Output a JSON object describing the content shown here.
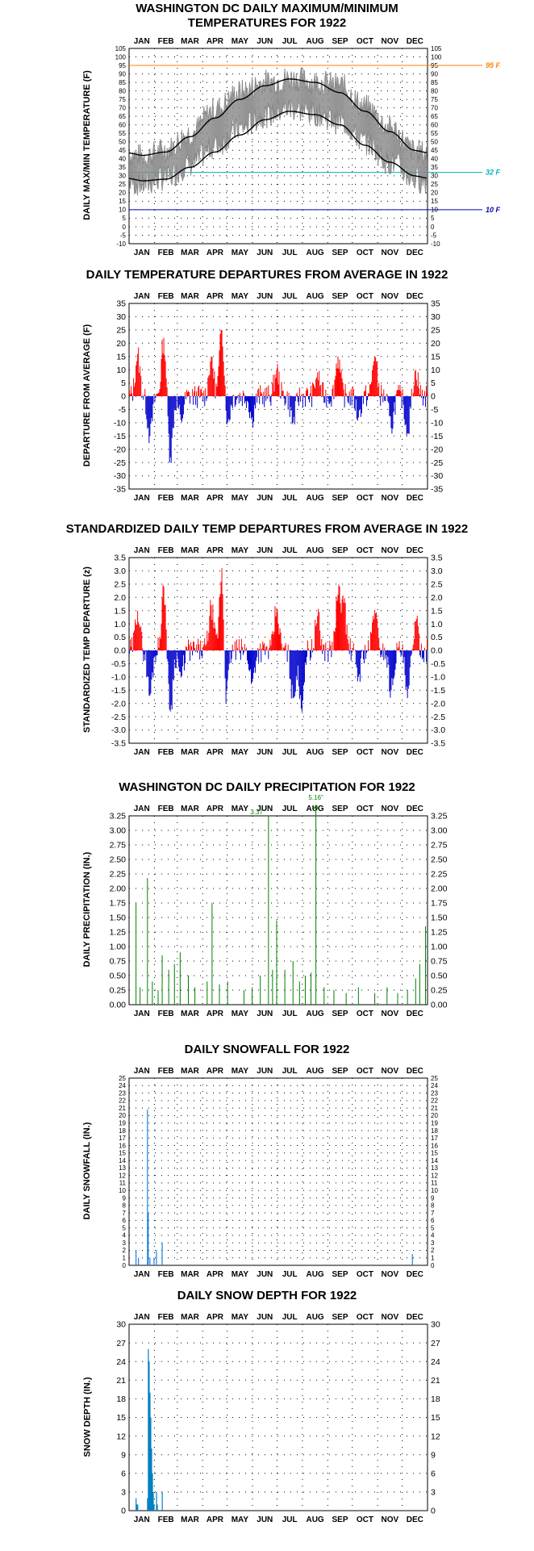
{
  "months": [
    "JAN",
    "FEB",
    "MAR",
    "APR",
    "MAY",
    "JUN",
    "JUL",
    "AUG",
    "SEP",
    "OCT",
    "NOV",
    "DEC"
  ],
  "colors": {
    "temp_line": "#888888",
    "normal_line": "#000000",
    "ref_95": "#ff8000",
    "ref_32": "#00b0c0",
    "ref_10": "#0000b0",
    "warm": "#ff0000",
    "cold": "#0000cc",
    "precip": "#008000",
    "snow": "#2080e0",
    "depth": "#0080c0"
  },
  "chart_data": [
    {
      "id": "temps",
      "type": "line",
      "title": "WASHINGTON DC DAILY MAXIMUM/MINIMUM\nTEMPERATURES FOR 1922",
      "ylabel": "DAILY MAX/MIN TEMPERATURE (F)",
      "ylim": [
        -10,
        105
      ],
      "yticks": [
        -10,
        -5,
        0,
        5,
        10,
        15,
        20,
        25,
        30,
        35,
        40,
        45,
        50,
        55,
        60,
        65,
        70,
        75,
        80,
        85,
        90,
        95,
        100,
        105
      ],
      "reference_lines": [
        {
          "value": 95,
          "label": "95 F",
          "color": "#ff8000"
        },
        {
          "value": 32,
          "label": "32 F",
          "color": "#00b0c0"
        },
        {
          "value": 10,
          "label": "10 F",
          "color": "#0000b0"
        }
      ],
      "normal_max_monthly": [
        42,
        44,
        53,
        64,
        75,
        83,
        87,
        85,
        79,
        68,
        56,
        45
      ],
      "normal_min_monthly": [
        27,
        28,
        35,
        44,
        54,
        63,
        68,
        66,
        60,
        48,
        38,
        30
      ],
      "series": [
        {
          "name": "max",
          "monthly": [
            41,
            45,
            55,
            69,
            79,
            85,
            87,
            85,
            83,
            70,
            58,
            44
          ]
        },
        {
          "name": "min",
          "monthly": [
            25,
            29,
            37,
            48,
            58,
            66,
            70,
            67,
            62,
            50,
            38,
            28
          ]
        }
      ],
      "grid": true
    },
    {
      "id": "departures",
      "type": "bar",
      "title": "DAILY TEMPERATURE DEPARTURES FROM AVERAGE IN 1922",
      "ylabel": "DEPARTURE FROM AVERAGE (F)",
      "ylim": [
        -35,
        35
      ],
      "yticks": [
        -35,
        -30,
        -25,
        -20,
        -15,
        -10,
        -5,
        0,
        5,
        10,
        15,
        20,
        25,
        30,
        35
      ],
      "spikes": [
        [
          10,
          16
        ],
        [
          25,
          -15
        ],
        [
          42,
          22
        ],
        [
          50,
          -23
        ],
        [
          63,
          -9
        ],
        [
          100,
          15
        ],
        [
          113,
          25
        ],
        [
          120,
          -10
        ],
        [
          150,
          -8
        ],
        [
          180,
          10
        ],
        [
          200,
          -10
        ],
        [
          230,
          9
        ],
        [
          255,
          15
        ],
        [
          280,
          -8
        ],
        [
          300,
          15
        ],
        [
          320,
          -12
        ],
        [
          340,
          -14
        ],
        [
          350,
          10
        ]
      ],
      "grid": true
    },
    {
      "id": "std_departures",
      "type": "bar",
      "title": "STANDARDIZED DAILY TEMP DEPARTURES FROM AVERAGE IN 1922",
      "ylabel": "STANDARDIZED TEMP DEPARTURE (z)",
      "ylim": [
        -3.5,
        3.5
      ],
      "yticks": [
        -3.5,
        -3.0,
        -2.5,
        -2.0,
        -1.5,
        -1.0,
        -0.5,
        0.0,
        0.5,
        1.0,
        1.5,
        2.0,
        2.5,
        3.0,
        3.5
      ],
      "spikes": [
        [
          10,
          1.5
        ],
        [
          25,
          -1.7
        ],
        [
          42,
          2.4
        ],
        [
          50,
          -2.3
        ],
        [
          63,
          -1.0
        ],
        [
          100,
          1.7
        ],
        [
          113,
          3.1
        ],
        [
          118,
          -2.0
        ],
        [
          150,
          -1.2
        ],
        [
          180,
          1.6
        ],
        [
          200,
          -1.8
        ],
        [
          210,
          -2.2
        ],
        [
          230,
          1.3
        ],
        [
          255,
          2.1
        ],
        [
          262,
          1.8
        ],
        [
          280,
          -1.0
        ],
        [
          300,
          1.5
        ],
        [
          320,
          -1.5
        ],
        [
          340,
          -1.8
        ],
        [
          350,
          1.1
        ]
      ],
      "grid": true
    },
    {
      "id": "precip",
      "type": "bar",
      "title": "WASHINGTON DC DAILY PRECIPITATION FOR 1922",
      "ylabel": "DAILY PRECIPITATION (IN.)",
      "ylim": [
        0,
        3.25
      ],
      "yticks": [
        0.0,
        0.25,
        0.5,
        0.75,
        1.0,
        1.25,
        1.5,
        1.75,
        2.0,
        2.25,
        2.5,
        2.75,
        3.0,
        3.25
      ],
      "tick_format": 2,
      "bars": [
        [
          8,
          1.75
        ],
        [
          13,
          0.3
        ],
        [
          22,
          2.18
        ],
        [
          28,
          0.4
        ],
        [
          35,
          0.25
        ],
        [
          40,
          0.85
        ],
        [
          48,
          0.6
        ],
        [
          55,
          0.7
        ],
        [
          62,
          0.9
        ],
        [
          72,
          0.5
        ],
        [
          80,
          0.3
        ],
        [
          95,
          0.4
        ],
        [
          101,
          1.75
        ],
        [
          110,
          0.35
        ],
        [
          120,
          0.4
        ],
        [
          140,
          0.25
        ],
        [
          150,
          0.3
        ],
        [
          160,
          0.5
        ],
        [
          170,
          3.37
        ],
        [
          175,
          0.6
        ],
        [
          180,
          1.45
        ],
        [
          190,
          0.6
        ],
        [
          200,
          0.75
        ],
        [
          208,
          0.4
        ],
        [
          215,
          0.5
        ],
        [
          222,
          0.55
        ],
        [
          228,
          5.16
        ],
        [
          238,
          0.3
        ],
        [
          250,
          0.25
        ],
        [
          265,
          0.2
        ],
        [
          280,
          0.3
        ],
        [
          300,
          0.2
        ],
        [
          315,
          0.3
        ],
        [
          328,
          0.2
        ],
        [
          340,
          0.25
        ],
        [
          350,
          0.45
        ],
        [
          355,
          0.7
        ],
        [
          362,
          1.35
        ]
      ],
      "annotations": [
        {
          "day": 170,
          "label": "3.37\""
        },
        {
          "day": 228,
          "label": "5.16\""
        }
      ],
      "grid": true
    },
    {
      "id": "snowfall",
      "type": "bar",
      "title": "DAILY SNOWFALL FOR 1922",
      "ylabel": "DAILY SNOWFALL (IN.)",
      "ylim": [
        0,
        25
      ],
      "yticks": [
        0,
        1,
        2,
        3,
        4,
        5,
        6,
        7,
        8,
        9,
        10,
        11,
        12,
        13,
        14,
        15,
        16,
        17,
        18,
        19,
        20,
        21,
        22,
        23,
        24,
        25
      ],
      "bars": [
        [
          8,
          2.0
        ],
        [
          11,
          1.0
        ],
        [
          22,
          20.8
        ],
        [
          23,
          7.0
        ],
        [
          25,
          1.0
        ],
        [
          30,
          1.0
        ],
        [
          33,
          2.0
        ],
        [
          40,
          3.0
        ],
        [
          346,
          1.5
        ]
      ],
      "grid": true
    },
    {
      "id": "snow_depth",
      "type": "bar",
      "title": "DAILY SNOW DEPTH FOR 1922",
      "ylabel": "SNOW DEPTH (IN.)",
      "ylim": [
        0,
        30
      ],
      "yticks": [
        0,
        3,
        6,
        9,
        12,
        15,
        18,
        21,
        24,
        27,
        30
      ],
      "bars": [
        [
          8,
          2
        ],
        [
          9,
          1
        ],
        [
          10,
          1
        ],
        [
          22,
          2
        ],
        [
          23,
          26
        ],
        [
          24,
          24
        ],
        [
          25,
          19
        ],
        [
          26,
          15
        ],
        [
          27,
          10
        ],
        [
          28,
          6
        ],
        [
          29,
          3
        ],
        [
          30,
          1
        ],
        [
          33,
          3
        ],
        [
          34,
          1
        ],
        [
          40,
          3
        ]
      ],
      "grid": true
    }
  ]
}
